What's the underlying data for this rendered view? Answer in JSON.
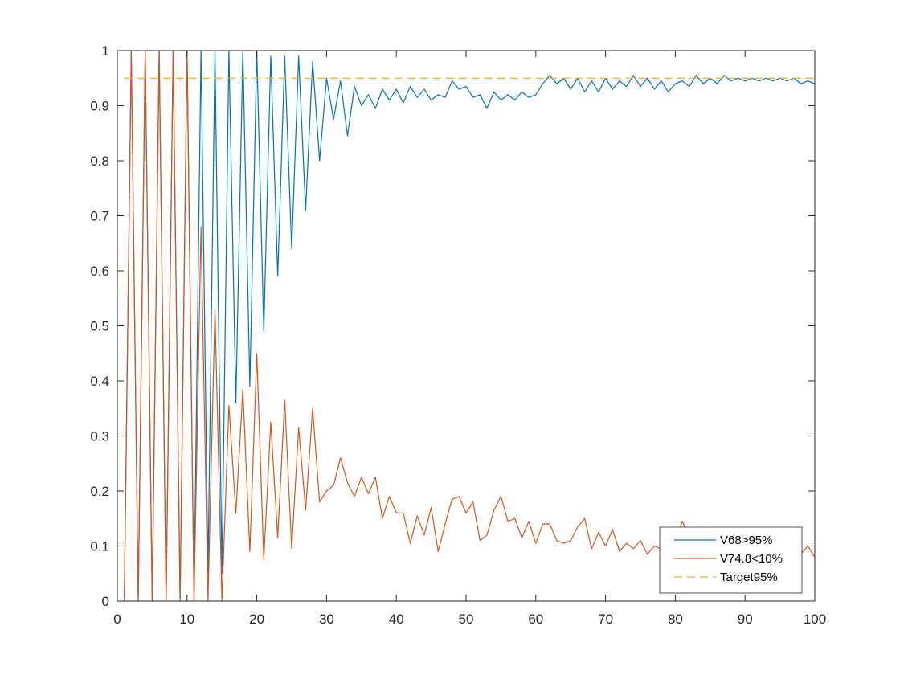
{
  "chart_data": {
    "type": "line",
    "xlim": [
      0,
      100
    ],
    "ylim": [
      0,
      1
    ],
    "xticks": [
      "0",
      "10",
      "20",
      "30",
      "40",
      "50",
      "60",
      "70",
      "80",
      "90",
      "100"
    ],
    "yticks": [
      "0",
      "0.1",
      "0.2",
      "0.3",
      "0.4",
      "0.5",
      "0.6",
      "0.7",
      "0.8",
      "0.9",
      "1"
    ],
    "grid": false,
    "box": true,
    "legend_position": "bottom-right",
    "series": [
      {
        "name": "V68>95%",
        "color": "#0072BD",
        "style": "solid",
        "x": [
          1,
          2,
          3,
          4,
          5,
          6,
          7,
          8,
          9,
          10,
          11,
          12,
          13,
          14,
          15,
          16,
          17,
          18,
          19,
          20,
          21,
          22,
          23,
          24,
          25,
          26,
          27,
          28,
          29,
          30,
          31,
          32,
          33,
          34,
          35,
          36,
          37,
          38,
          39,
          40,
          41,
          42,
          43,
          44,
          45,
          46,
          47,
          48,
          49,
          50,
          51,
          52,
          53,
          54,
          55,
          56,
          57,
          58,
          59,
          60,
          61,
          62,
          63,
          64,
          65,
          66,
          67,
          68,
          69,
          70,
          71,
          72,
          73,
          74,
          75,
          76,
          77,
          78,
          79,
          80,
          81,
          82,
          83,
          84,
          85,
          86,
          87,
          88,
          89,
          90,
          91,
          92,
          93,
          94,
          95,
          96,
          97,
          98,
          99,
          100
        ],
        "y": [
          0,
          1,
          0,
          1,
          0,
          1,
          0,
          1,
          0,
          1,
          0,
          1,
          0.05,
          1,
          0.05,
          1,
          0.36,
          1,
          0.39,
          1,
          0.49,
          0.99,
          0.59,
          0.99,
          0.64,
          0.99,
          0.71,
          0.98,
          0.8,
          0.95,
          0.875,
          0.945,
          0.845,
          0.935,
          0.9,
          0.92,
          0.895,
          0.93,
          0.91,
          0.93,
          0.905,
          0.935,
          0.915,
          0.93,
          0.91,
          0.92,
          0.915,
          0.945,
          0.93,
          0.935,
          0.915,
          0.92,
          0.895,
          0.925,
          0.91,
          0.92,
          0.91,
          0.925,
          0.915,
          0.92,
          0.94,
          0.955,
          0.94,
          0.95,
          0.93,
          0.95,
          0.925,
          0.945,
          0.925,
          0.95,
          0.93,
          0.945,
          0.935,
          0.955,
          0.935,
          0.95,
          0.93,
          0.945,
          0.925,
          0.94,
          0.945,
          0.935,
          0.955,
          0.94,
          0.95,
          0.94,
          0.955,
          0.945,
          0.95,
          0.945,
          0.95,
          0.945,
          0.95,
          0.945,
          0.95,
          0.945,
          0.95,
          0.94,
          0.945,
          0.94
        ]
      },
      {
        "name": "V74.8<10%",
        "color": "#D95319",
        "style": "solid",
        "x": [
          1,
          2,
          3,
          4,
          5,
          6,
          7,
          8,
          9,
          10,
          11,
          12,
          13,
          14,
          15,
          16,
          17,
          18,
          19,
          20,
          21,
          22,
          23,
          24,
          25,
          26,
          27,
          28,
          29,
          30,
          31,
          32,
          33,
          34,
          35,
          36,
          37,
          38,
          39,
          40,
          41,
          42,
          43,
          44,
          45,
          46,
          47,
          48,
          49,
          50,
          51,
          52,
          53,
          54,
          55,
          56,
          57,
          58,
          59,
          60,
          61,
          62,
          63,
          64,
          65,
          66,
          67,
          68,
          69,
          70,
          71,
          72,
          73,
          74,
          75,
          76,
          77,
          78,
          79,
          80,
          81,
          82,
          83,
          84,
          85,
          86,
          87,
          88,
          89,
          90,
          91,
          92,
          93,
          94,
          95,
          96,
          97,
          98,
          99,
          100
        ],
        "y": [
          0,
          1,
          0,
          1,
          0,
          1,
          0,
          1,
          0,
          1,
          0,
          0.68,
          0,
          0.53,
          0,
          0.355,
          0.16,
          0.385,
          0.09,
          0.45,
          0.075,
          0.325,
          0.115,
          0.365,
          0.095,
          0.315,
          0.165,
          0.35,
          0.18,
          0.2,
          0.21,
          0.26,
          0.215,
          0.19,
          0.225,
          0.195,
          0.225,
          0.15,
          0.19,
          0.16,
          0.16,
          0.105,
          0.155,
          0.12,
          0.17,
          0.09,
          0.14,
          0.185,
          0.19,
          0.16,
          0.18,
          0.11,
          0.12,
          0.165,
          0.19,
          0.145,
          0.15,
          0.115,
          0.145,
          0.105,
          0.14,
          0.14,
          0.11,
          0.105,
          0.11,
          0.135,
          0.15,
          0.095,
          0.125,
          0.1,
          0.13,
          0.09,
          0.105,
          0.095,
          0.11,
          0.085,
          0.1,
          0.095,
          0.09,
          0.11,
          0.145,
          0.115,
          0.09,
          0.105,
          0.095,
          0.1,
          0.09,
          0.095,
          0.09,
          0.085,
          0.095,
          0.09,
          0.09,
          0.085,
          0.09,
          0.085,
          0.09,
          0.085,
          0.1,
          0.08
        ]
      },
      {
        "name": "Target95%",
        "color": "#EDB120",
        "style": "dashed",
        "x": [
          1,
          100
        ],
        "y": [
          0.95,
          0.95
        ]
      }
    ]
  }
}
